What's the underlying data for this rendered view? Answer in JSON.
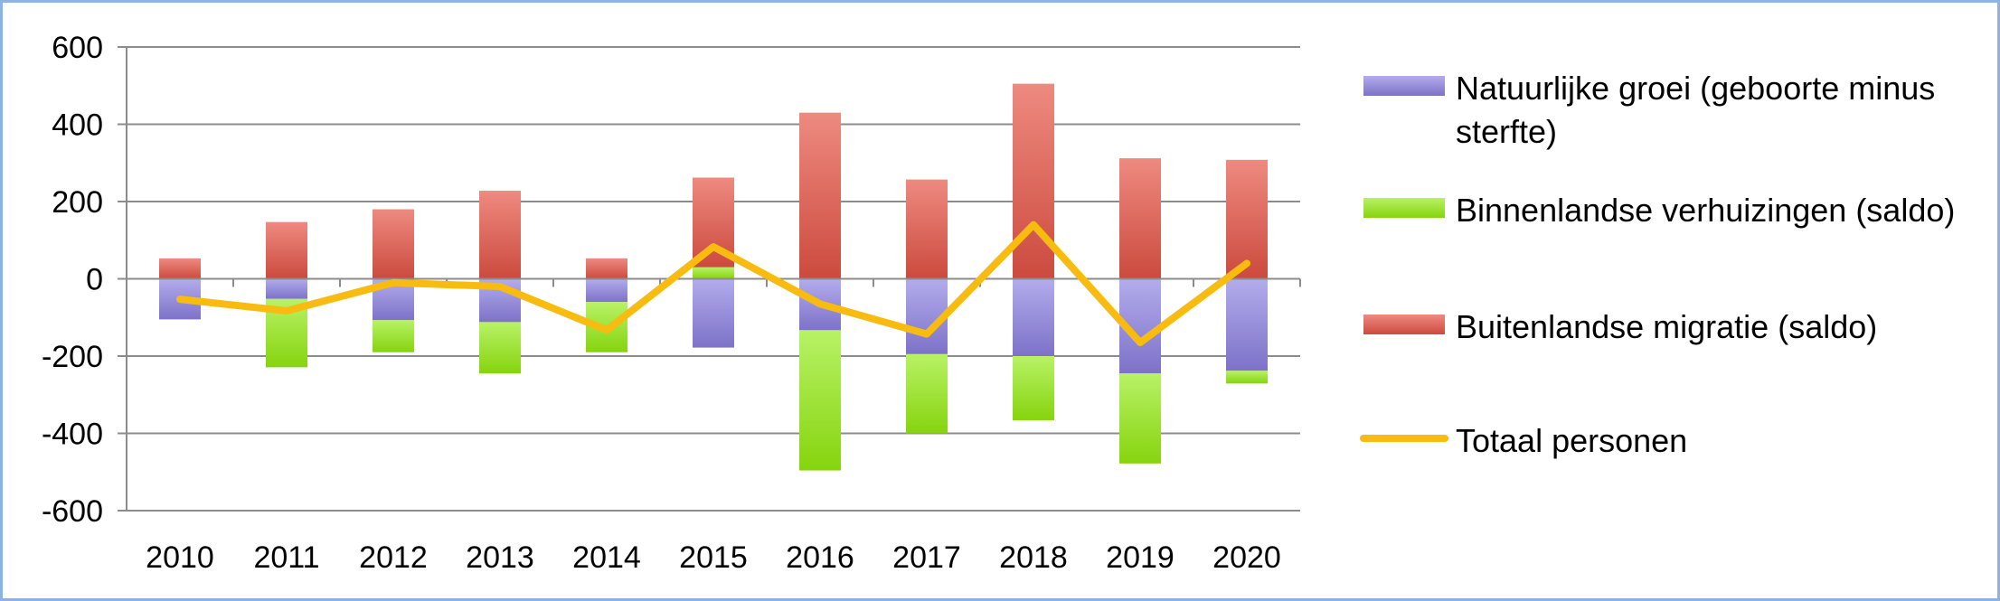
{
  "chart_data": {
    "type": "bar",
    "stacked": true,
    "title": "",
    "xlabel": "",
    "ylabel": "",
    "ylim": [
      -600,
      600
    ],
    "yticks": [
      600,
      400,
      200,
      0,
      -200,
      -400,
      -600
    ],
    "grid": true,
    "legend_position": "right",
    "categories": [
      "2010",
      "2011",
      "2012",
      "2013",
      "2014",
      "2015",
      "2016",
      "2017",
      "2018",
      "2019",
      "2020"
    ],
    "series": [
      {
        "name": "Natuurlijke groei (geboorte minus sterfte)",
        "legend_lines": [
          "Natuurlijke groei (geboorte minus",
          "sterfte)"
        ],
        "kind": "bar",
        "color": "#8f86d6",
        "values": [
          -105,
          -52,
          -107,
          -112,
          -60,
          -178,
          -133,
          -195,
          -200,
          -245,
          -238
        ]
      },
      {
        "name": "Binnenlandse verhuizingen (saldo)",
        "legend_lines": [
          "Binnenlandse verhuizingen (saldo)"
        ],
        "kind": "bar",
        "color": "#93df1c",
        "values": [
          0,
          -177,
          -83,
          -133,
          -130,
          30,
          -363,
          -205,
          -166,
          -233,
          -33
        ]
      },
      {
        "name": "Buitenlandse migratie (saldo)",
        "legend_lines": [
          "Buitenlandse migratie (saldo)"
        ],
        "kind": "bar",
        "color": "#d9574a",
        "values": [
          53,
          147,
          180,
          228,
          53,
          232,
          430,
          257,
          505,
          312,
          308
        ]
      },
      {
        "name": "Totaal personen",
        "legend_lines": [
          "Totaal personen"
        ],
        "kind": "line",
        "color": "#f8bb0f",
        "values": [
          -53,
          -83,
          -10,
          -20,
          -133,
          83,
          -65,
          -143,
          140,
          -165,
          40
        ]
      }
    ]
  }
}
